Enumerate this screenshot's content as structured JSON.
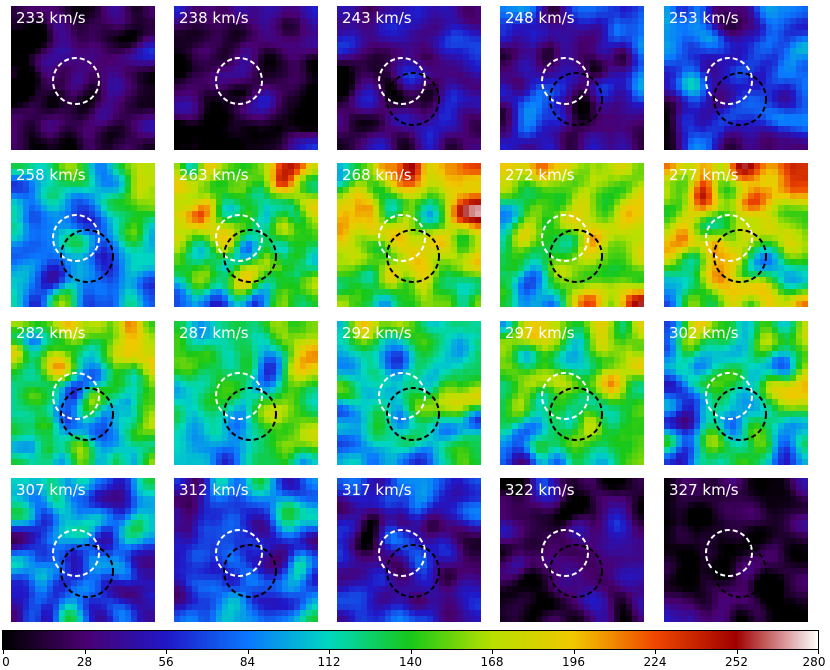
{
  "panels": [
    {
      "label": "233 km/s",
      "level": 0.06,
      "dark_ring": false
    },
    {
      "label": "238 km/s",
      "level": 0.08,
      "dark_ring": false
    },
    {
      "label": "243 km/s",
      "level": 0.09,
      "dark_ring": true
    },
    {
      "label": "248 km/s",
      "level": 0.17,
      "dark_ring": true
    },
    {
      "label": "253 km/s",
      "level": 0.22,
      "dark_ring": true
    },
    {
      "label": "258 km/s",
      "level": 0.42,
      "dark_ring": true
    },
    {
      "label": "263 km/s",
      "level": 0.55,
      "dark_ring": true
    },
    {
      "label": "268 km/s",
      "level": 0.6,
      "dark_ring": true
    },
    {
      "label": "272 km/s",
      "level": 0.62,
      "dark_ring": true
    },
    {
      "label": "277 km/s",
      "level": 0.58,
      "dark_ring": true
    },
    {
      "label": "282 km/s",
      "level": 0.48,
      "dark_ring": true
    },
    {
      "label": "287 km/s",
      "level": 0.42,
      "dark_ring": true
    },
    {
      "label": "292 km/s",
      "level": 0.44,
      "dark_ring": true
    },
    {
      "label": "297 km/s",
      "level": 0.46,
      "dark_ring": true
    },
    {
      "label": "302 km/s",
      "level": 0.42,
      "dark_ring": true
    },
    {
      "label": "307 km/s",
      "level": 0.3,
      "dark_ring": true
    },
    {
      "label": "312 km/s",
      "level": 0.28,
      "dark_ring": true
    },
    {
      "label": "317 km/s",
      "level": 0.16,
      "dark_ring": true
    },
    {
      "label": "322 km/s",
      "level": 0.09,
      "dark_ring": true
    },
    {
      "label": "327 km/s",
      "level": 0.08,
      "dark_ring": true
    }
  ],
  "colorbar": {
    "ticks": [
      "0",
      "28",
      "56",
      "84",
      "112",
      "140",
      "168",
      "196",
      "224",
      "252",
      "280"
    ],
    "colors": [
      "#000000",
      "#4a0070",
      "#2018c8",
      "#0a78ff",
      "#00d8c0",
      "#18c818",
      "#b8e000",
      "#f0c800",
      "#f04800",
      "#a00000",
      "#ffffff"
    ]
  }
}
